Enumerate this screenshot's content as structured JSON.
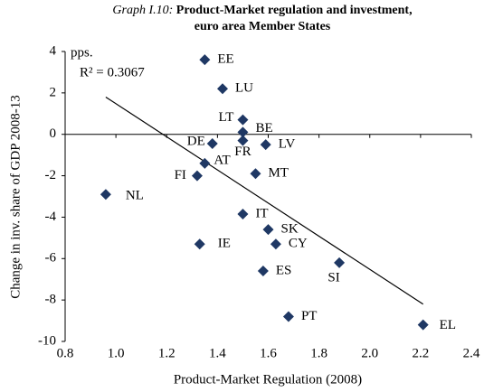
{
  "chart_data": {
    "type": "scatter",
    "title_prefix": "Graph I.10:",
    "title": "Product-Market regulation and investment,",
    "subtitle": "euro area Member States",
    "x_label": "Product-Market Regulation (2008)",
    "y_label": "Change in inv. share of GDP 2008-13",
    "y_unit": "pps.",
    "annotation": "R² = 0.3067",
    "color": "#1f3864",
    "labels": [
      "EE",
      "LU",
      "LT",
      "BE",
      "FR",
      "DE",
      "LV",
      "AT",
      "MT",
      "FI",
      "NL",
      "IT",
      "SK",
      "IE",
      "CY",
      "ES",
      "SI",
      "PT",
      "EL"
    ],
    "x": [
      1.35,
      1.42,
      1.5,
      1.5,
      1.5,
      1.38,
      1.59,
      1.35,
      1.55,
      1.32,
      0.96,
      1.5,
      1.6,
      1.33,
      1.63,
      1.58,
      1.88,
      1.68,
      2.21
    ],
    "values": [
      3.6,
      2.2,
      0.7,
      0.1,
      -0.3,
      -0.45,
      -0.5,
      -1.4,
      -1.9,
      -2.0,
      -2.9,
      -3.85,
      -4.6,
      -5.3,
      -5.3,
      -6.6,
      -6.2,
      -8.8,
      -9.2
    ],
    "trendline": {
      "x": [
        0.96,
        2.21
      ],
      "y": [
        1.8,
        -8.2
      ]
    },
    "xlim": [
      0.8,
      2.4
    ],
    "xticks": [
      0.8,
      {
        "value": 1,
        "label": "1.0"
      },
      1.2,
      1.4,
      1.6,
      1.8,
      {
        "value": 2,
        "label": "2.0"
      },
      2.2,
      2.4
    ],
    "ylim": [
      -10,
      4
    ],
    "yticks": [
      -10,
      -8,
      -6,
      -4,
      -2,
      0,
      2,
      4
    ]
  }
}
